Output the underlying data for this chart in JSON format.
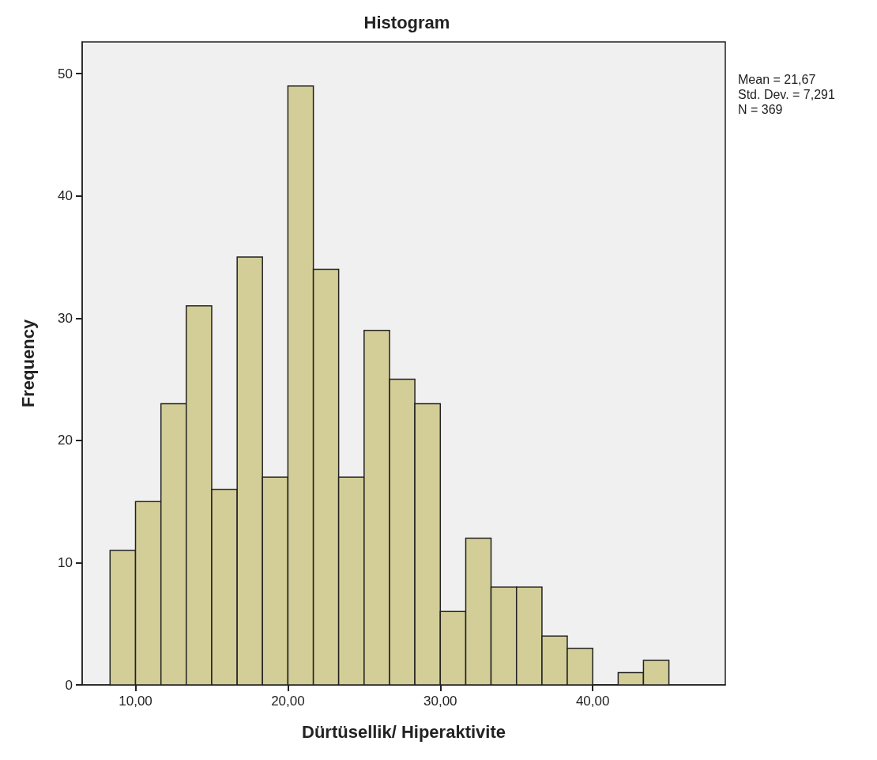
{
  "chart_data": {
    "type": "histogram",
    "title": "Histogram",
    "xlabel": "Dürtüsellik/ Hiperaktivite",
    "ylabel": "Frequency",
    "bins": [
      8.33,
      10,
      11.67,
      13.33,
      15,
      16.67,
      18.33,
      20,
      21.67,
      23.33,
      25,
      26.67,
      28.33,
      30,
      31.67,
      33.33,
      35,
      36.67,
      38.33,
      40,
      41.67,
      43.33,
      45
    ],
    "values": [
      11,
      15,
      23,
      31,
      16,
      35,
      17,
      49,
      34,
      17,
      29,
      25,
      23,
      6,
      12,
      8,
      8,
      4,
      3,
      0,
      1,
      2
    ],
    "color": "#d3ce98",
    "xlim": [
      6.5,
      48.7
    ],
    "xticks": [
      {
        "value": 10,
        "label": "10,00"
      },
      {
        "value": 20,
        "label": "20,00"
      },
      {
        "value": 30,
        "label": "30,00"
      },
      {
        "value": 40,
        "label": "40,00"
      }
    ],
    "ylim": [
      0,
      52.6
    ],
    "yticks": [
      0,
      10,
      20,
      30,
      40,
      50
    ],
    "grid": false,
    "annotations": [
      "Mean = 21,67",
      "Std. Dev. = 7,291",
      "N = 369"
    ]
  }
}
